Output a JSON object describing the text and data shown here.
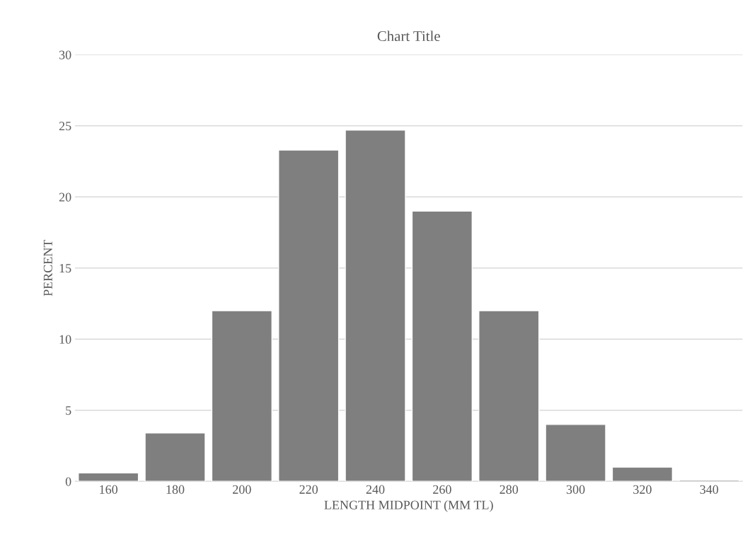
{
  "chart_data": {
    "type": "bar",
    "title": "Chart Title",
    "xlabel": "LENGTH MIDPOINT (MM TL)",
    "ylabel": "PERCENT",
    "categories": [
      "160",
      "180",
      "200",
      "220",
      "240",
      "260",
      "280",
      "300",
      "320",
      "340"
    ],
    "values": [
      0.6,
      3.4,
      12.0,
      23.3,
      24.7,
      19.0,
      12.0,
      4.0,
      1.0,
      0.1
    ],
    "color": "#7f7f7f",
    "ylim": [
      0,
      30
    ],
    "yticks": [
      0,
      5,
      10,
      15,
      20,
      25,
      30
    ],
    "grid": "y",
    "legend": false
  }
}
